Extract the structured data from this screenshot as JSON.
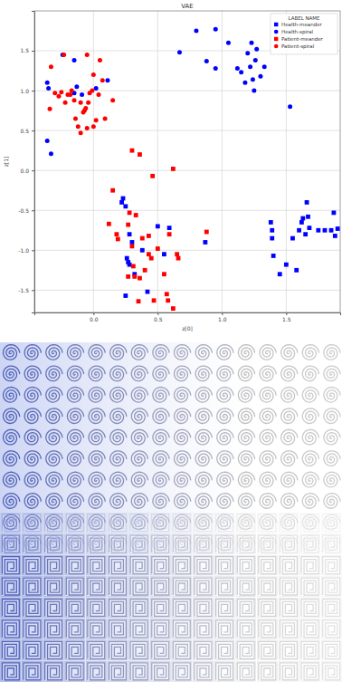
{
  "chart_data": {
    "type": "scatter",
    "title": "VAE",
    "x_label": "z[0]",
    "y_label": "z[1]",
    "legend_title": "LABEL NAME",
    "legend": "upper right",
    "grid": true,
    "xlim": [
      -0.46,
      1.92
    ],
    "ylim": [
      -1.78,
      2.0
    ],
    "xticks": [
      {
        "value": 0,
        "label": "0.0"
      },
      0.5,
      {
        "value": 1,
        "label": "1.0"
      },
      1.5
    ],
    "yticks": [
      -1.5,
      {
        "value": -1,
        "label": "-1.0"
      },
      -0.5,
      {
        "value": 0,
        "label": "0.0"
      },
      0.5,
      {
        "value": 1,
        "label": "1.0"
      },
      1.5
    ],
    "series": [
      {
        "name": "Health-meander",
        "color": "#0000ff",
        "marker": "square",
        "x": [
          1.38,
          1.39,
          1.39,
          1.4,
          1.45,
          1.5,
          1.55,
          1.58,
          1.6,
          1.62,
          1.63,
          1.65,
          1.66,
          1.67,
          1.68,
          1.75,
          1.8,
          1.85,
          1.87,
          1.88,
          1.9,
          0.22,
          0.23,
          0.25,
          0.26,
          0.27,
          0.28,
          0.3,
          0.32,
          0.28,
          0.25,
          0.38,
          0.42,
          0.5,
          0.55,
          0.59,
          0.87
        ],
        "values": [
          -0.65,
          -0.75,
          -0.85,
          -1.07,
          -1.3,
          -1.18,
          -0.85,
          -1.25,
          -0.75,
          -0.65,
          -0.6,
          -0.8,
          -0.4,
          -0.58,
          -0.72,
          -0.75,
          -0.75,
          -0.75,
          -0.53,
          -0.82,
          -0.73,
          -0.4,
          -0.35,
          -0.45,
          -1.1,
          -1.15,
          -0.8,
          -0.9,
          -1.3,
          -1.18,
          -1.57,
          -1.0,
          -1.52,
          -0.7,
          -1.05,
          -0.72,
          -0.9
        ]
      },
      {
        "name": "Health-spiral",
        "color": "#0000ff",
        "marker": "circle",
        "x": [
          -0.35,
          -0.36,
          -0.36,
          -0.33,
          -0.24,
          -0.15,
          -0.13,
          -0.15,
          -0.09,
          0.02,
          0.11,
          0.67,
          0.8,
          0.88,
          0.95,
          0.95,
          1.05,
          1.12,
          1.15,
          1.18,
          1.2,
          1.22,
          1.23,
          1.25,
          1.26,
          1.27,
          1.3,
          1.33,
          1.53,
          1.24
        ],
        "values": [
          1.03,
          1.1,
          0.37,
          0.21,
          1.45,
          1.38,
          1.05,
          0.97,
          0.95,
          1.03,
          1.13,
          1.48,
          1.75,
          1.37,
          1.77,
          1.28,
          1.6,
          1.28,
          1.23,
          1.1,
          1.47,
          1.3,
          1.6,
          1.0,
          1.38,
          1.52,
          1.18,
          1.3,
          0.8,
          1.14
        ]
      },
      {
        "name": "Patient-meander",
        "color": "#ff0000",
        "marker": "square",
        "x": [
          0.3,
          0.36,
          0.62,
          0.46,
          0.15,
          0.12,
          0.18,
          0.19,
          0.27,
          0.28,
          0.33,
          0.38,
          0.3,
          0.32,
          0.36,
          0.35,
          0.4,
          0.43,
          0.43,
          0.45,
          0.47,
          0.5,
          0.55,
          0.57,
          0.58,
          0.59,
          0.62,
          0.65,
          0.66,
          0.88,
          0.27,
          0.31
        ],
        "values": [
          0.25,
          0.2,
          0.02,
          -0.07,
          -0.25,
          -0.67,
          -0.8,
          -0.86,
          -0.68,
          -0.53,
          -0.56,
          -0.85,
          -0.95,
          -1.33,
          -1.35,
          -1.64,
          -1.25,
          -1.05,
          -0.82,
          -1.1,
          -1.63,
          -0.98,
          -1.3,
          -1.55,
          -1.63,
          -0.8,
          -1.73,
          -1.05,
          -1.1,
          -0.77,
          -1.33,
          -1.2
        ]
      },
      {
        "name": "Patient-spiral",
        "color": "#ff0000",
        "marker": "circle",
        "x": [
          -0.34,
          -0.33,
          -0.3,
          -0.27,
          -0.25,
          -0.23,
          -0.22,
          -0.2,
          -0.18,
          -0.17,
          -0.15,
          -0.14,
          -0.12,
          -0.1,
          -0.1,
          -0.08,
          -0.07,
          -0.06,
          -0.05,
          -0.05,
          -0.04,
          -0.03,
          -0.01,
          0.0,
          0.0,
          0.02,
          0.04,
          0.05,
          0.07,
          0.09,
          0.15
        ],
        "values": [
          0.77,
          1.3,
          0.97,
          0.93,
          0.98,
          1.45,
          0.85,
          0.95,
          0.95,
          1.0,
          0.88,
          0.65,
          0.55,
          0.47,
          0.85,
          0.73,
          0.75,
          0.78,
          0.53,
          1.45,
          0.85,
          0.97,
          1.0,
          0.55,
          1.2,
          0.63,
          0.95,
          1.38,
          1.13,
          0.65,
          0.88
        ]
      }
    ]
  }
}
